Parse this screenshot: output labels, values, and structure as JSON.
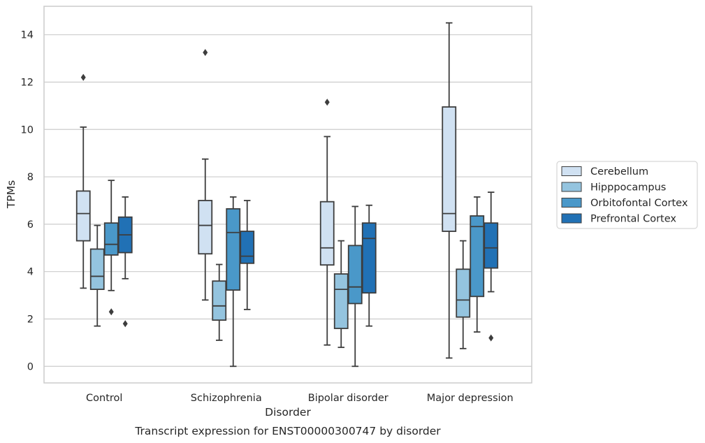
{
  "chart_data": {
    "type": "box",
    "title": "",
    "caption": "Transcript expression for ENST00000300747 by disorder",
    "xlabel": "Disorder",
    "ylabel": "TPMs",
    "ylim": [
      -0.7,
      15.2
    ],
    "yticks": [
      "0",
      "2",
      "4",
      "6",
      "8",
      "10",
      "12",
      "14"
    ],
    "grid": "horizontal",
    "legend_position": "right",
    "categories": [
      "Control",
      "Schizophrenia",
      "Bipolar disorder",
      "Major depression"
    ],
    "series": [
      {
        "name": "Cerebellum",
        "color": "#d0e1f2",
        "boxes": [
          {
            "whisker_low": 3.3,
            "q1": 5.3,
            "median": 6.45,
            "q3": 7.4,
            "whisker_high": 10.1,
            "outliers": [
              12.2
            ]
          },
          {
            "whisker_low": 2.8,
            "q1": 4.75,
            "median": 5.95,
            "q3": 7.0,
            "whisker_high": 8.75,
            "outliers": [
              13.25
            ]
          },
          {
            "whisker_low": 0.9,
            "q1": 4.28,
            "median": 5.0,
            "q3": 6.95,
            "whisker_high": 9.7,
            "outliers": [
              11.15
            ]
          },
          {
            "whisker_low": 0.35,
            "q1": 5.7,
            "median": 6.45,
            "q3": 10.95,
            "whisker_high": 14.5,
            "outliers": []
          }
        ]
      },
      {
        "name": "Hipppocampus",
        "color": "#94c4df",
        "boxes": [
          {
            "whisker_low": 1.7,
            "q1": 3.25,
            "median": 3.8,
            "q3": 4.95,
            "whisker_high": 5.95,
            "outliers": []
          },
          {
            "whisker_low": 1.1,
            "q1": 1.95,
            "median": 2.55,
            "q3": 3.6,
            "whisker_high": 4.3,
            "outliers": []
          },
          {
            "whisker_low": 0.8,
            "q1": 1.6,
            "median": 3.25,
            "q3": 3.9,
            "whisker_high": 5.3,
            "outliers": []
          },
          {
            "whisker_low": 0.75,
            "q1": 2.08,
            "median": 2.8,
            "q3": 4.1,
            "whisker_high": 5.3,
            "outliers": []
          }
        ]
      },
      {
        "name": "Orbitofontal Cortex",
        "color": "#4a98c9",
        "boxes": [
          {
            "whisker_low": 3.2,
            "q1": 4.7,
            "median": 5.15,
            "q3": 6.05,
            "whisker_high": 7.85,
            "outliers": [
              2.3
            ]
          },
          {
            "whisker_low": 0.0,
            "q1": 3.22,
            "median": 5.65,
            "q3": 6.65,
            "whisker_high": 7.15,
            "outliers": []
          },
          {
            "whisker_low": 0.0,
            "q1": 2.65,
            "median": 3.35,
            "q3": 5.1,
            "whisker_high": 6.75,
            "outliers": []
          },
          {
            "whisker_low": 1.45,
            "q1": 2.95,
            "median": 5.9,
            "q3": 6.35,
            "whisker_high": 7.15,
            "outliers": []
          }
        ]
      },
      {
        "name": "Prefrontal Cortex",
        "color": "#2171b5",
        "boxes": [
          {
            "whisker_low": 3.7,
            "q1": 4.8,
            "median": 5.55,
            "q3": 6.3,
            "whisker_high": 7.15,
            "outliers": [
              1.8
            ]
          },
          {
            "whisker_low": 2.4,
            "q1": 4.35,
            "median": 4.65,
            "q3": 5.7,
            "whisker_high": 7.0,
            "outliers": []
          },
          {
            "whisker_low": 1.7,
            "q1": 3.1,
            "median": 5.4,
            "q3": 6.05,
            "whisker_high": 6.8,
            "outliers": []
          },
          {
            "whisker_low": 3.15,
            "q1": 4.15,
            "median": 5.0,
            "q3": 6.05,
            "whisker_high": 7.35,
            "outliers": [
              1.2
            ]
          }
        ]
      }
    ]
  }
}
